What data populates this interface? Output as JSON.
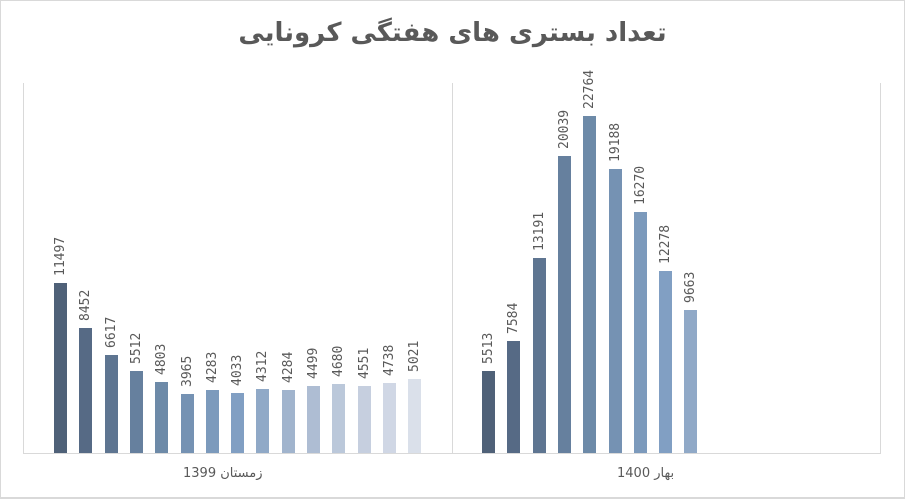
{
  "chart_data": {
    "type": "bar",
    "title": "تعداد بستری های  هفتگی کرونایی",
    "xlabel": "",
    "ylabel": "",
    "grid": false,
    "legend": null,
    "ylim": [
      0,
      25000
    ],
    "groups": [
      {
        "label": "زمستان 1399",
        "values": [
          11497,
          8452,
          6617,
          5512,
          4803,
          3965,
          4283,
          4033,
          4312,
          4284,
          4499,
          4680,
          4551,
          4738,
          5021
        ],
        "colors": [
          "#4f6178",
          "#566a85",
          "#5e7591",
          "#66809e",
          "#6d8aa8",
          "#7592b3",
          "#7c9abc",
          "#819fc3",
          "#90a9c7",
          "#a1b4cd",
          "#aebdd3",
          "#bbc8da",
          "#c6cfdf",
          "#d0d7e5",
          "#dae0ea"
        ]
      },
      {
        "label": "بهار 1400",
        "values": [
          5513,
          7584,
          13191,
          20039,
          22764,
          19188,
          16270,
          12278,
          9663
        ],
        "colors": [
          "#4f6178",
          "#566a85",
          "#5e7591",
          "#66809e",
          "#6d8aa8",
          "#7592b3",
          "#7c9abc",
          "#819fc3",
          "#90a9c7"
        ]
      }
    ]
  }
}
